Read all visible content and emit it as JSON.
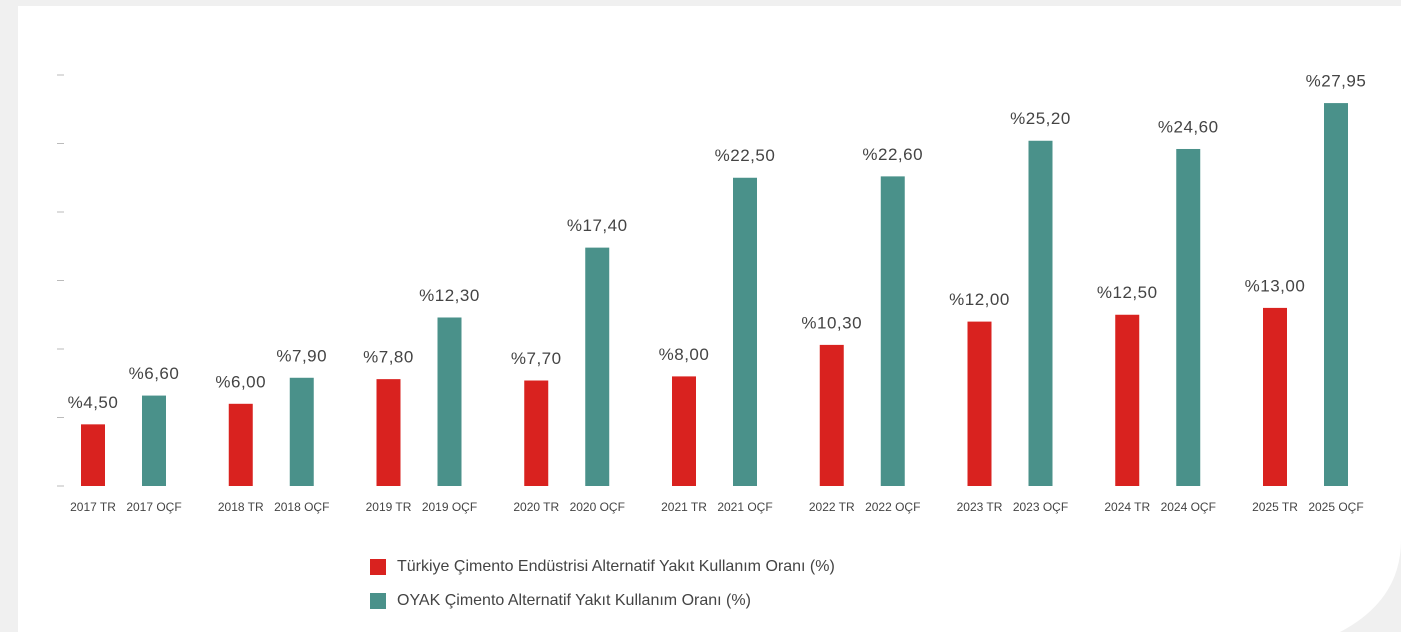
{
  "chart_data": {
    "type": "bar",
    "series": [
      {
        "name": "Türkiye Çimento Endüstrisi Alternatif Yakıt Kullanım Oranı (%)",
        "color": "#d9221f",
        "labels": [
          "2017 TR",
          "2018 TR",
          "2019 TR",
          "2020 TR",
          "2021 TR",
          "2022 TR",
          "2023 TR",
          "2024 TR",
          "2025 TR"
        ],
        "values": [
          4.5,
          6.0,
          7.8,
          7.7,
          8.0,
          10.3,
          12.0,
          12.5,
          13.0
        ],
        "value_labels": [
          "%4,50",
          "%6,00",
          "%7,80",
          "%7,70",
          "%8,00",
          "%10,30",
          "%12,00",
          "%12,50",
          "%13,00"
        ]
      },
      {
        "name": "OYAK Çimento Alternatif Yakıt Kullanım Oranı (%)",
        "color": "#4a918a",
        "labels": [
          "2017 OÇF",
          "2018 OÇF",
          "2019 OÇF",
          "2020 OÇF",
          "2021 OÇF",
          "2022 OÇF",
          "2023 OÇF",
          "2024 OÇF",
          "2025 OÇF"
        ],
        "values": [
          6.6,
          7.9,
          12.3,
          17.4,
          22.5,
          22.6,
          25.2,
          24.6,
          27.95
        ],
        "value_labels": [
          "%6,60",
          "%7,90",
          "%12,30",
          "%17,40",
          "%22,50",
          "%22,60",
          "%25,20",
          "%24,60",
          "%27,95"
        ]
      }
    ],
    "ylim": [
      0,
      30
    ],
    "yticks": [
      0,
      5,
      10,
      15,
      20,
      25,
      30
    ],
    "ytick_labels": false
  }
}
